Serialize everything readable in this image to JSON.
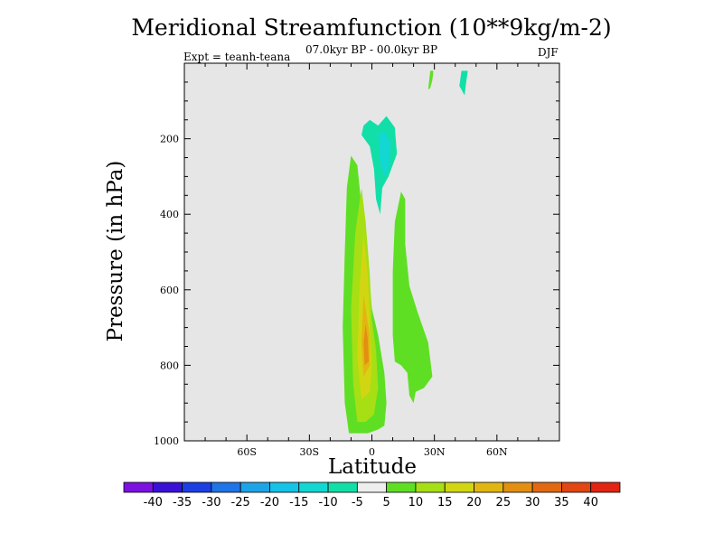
{
  "chart_data": {
    "type": "contour",
    "title": "Meridional Streamfunction (10**9kg/m-2)",
    "subtitle": "07.0kyr BP - 00.0kyr BP",
    "experiment_label": "Expt = teanh-teana",
    "season_label": "DJF",
    "xlabel": "Latitude",
    "ylabel": "Pressure (in hPa)",
    "xlim": [
      -90,
      90
    ],
    "ylim": [
      1000,
      0
    ],
    "x_ticks": [
      {
        "value": -60,
        "label": "60S"
      },
      {
        "value": -30,
        "label": "30S"
      },
      {
        "value": 0,
        "label": "0"
      },
      {
        "value": 30,
        "label": "30N"
      },
      {
        "value": 60,
        "label": "60N"
      }
    ],
    "y_ticks": [
      {
        "value": 200,
        "label": "200"
      },
      {
        "value": 400,
        "label": "400"
      },
      {
        "value": 600,
        "label": "600"
      },
      {
        "value": 800,
        "label": "800"
      },
      {
        "value": 1000,
        "label": "1000"
      }
    ],
    "contour_levels": [
      -40,
      -35,
      -30,
      -25,
      -20,
      -15,
      -10,
      -5,
      5,
      10,
      15,
      20,
      25,
      30,
      35,
      40
    ],
    "colorbar_labels": [
      "-40",
      "-35",
      "-30",
      "-25",
      "-20",
      "-15",
      "-10",
      "-5",
      "5",
      "10",
      "15",
      "20",
      "25",
      "30",
      "35",
      "40"
    ],
    "colorbar_colors": [
      "#7b12e0",
      "#3a12d6",
      "#1c3fe3",
      "#1f74e6",
      "#1da4e6",
      "#14c3e6",
      "#12d7d2",
      "#12dfa8",
      "#eeeeee",
      "#5edf24",
      "#a6df14",
      "#d2d612",
      "#e2b612",
      "#e28f12",
      "#e26812",
      "#e24612",
      "#e22412"
    ],
    "background_color": "#e6e6e6",
    "features": [
      {
        "name": "main positive cell",
        "level": 5,
        "lat": [
          -13,
          7
        ],
        "p": [
          245,
          970
        ],
        "peak_lat": -3,
        "peak_p": 760
      },
      {
        "name": "positive cell core",
        "level": 10,
        "lat": [
          -8,
          3
        ],
        "p": [
          330,
          950
        ]
      },
      {
        "name": "positive cell core",
        "level": 15,
        "lat": [
          -6,
          0
        ],
        "p": [
          450,
          890
        ]
      },
      {
        "name": "positive cell core",
        "level": 20,
        "lat": [
          -5,
          -1
        ],
        "p": [
          610,
          830
        ]
      },
      {
        "name": "positive cell peak",
        "level": 25,
        "lat": [
          -4,
          -1
        ],
        "p": [
          690,
          800
        ]
      },
      {
        "name": "northern positive lobe",
        "level": 5,
        "lat": [
          8,
          29
        ],
        "p": [
          330,
          900
        ]
      },
      {
        "name": "negative cell aloft",
        "level": -5,
        "lat": [
          -5,
          12
        ],
        "p": [
          160,
          400
        ]
      },
      {
        "name": "negative core aloft",
        "level": -10,
        "lat": [
          2,
          10
        ],
        "p": [
          170,
          300
        ]
      },
      {
        "name": "upper positive sliver",
        "level": 5,
        "lat": [
          27,
          30
        ],
        "p": [
          0,
          70
        ]
      },
      {
        "name": "upper negative sliver",
        "level": -5,
        "lat": [
          42,
          46
        ],
        "p": [
          0,
          85
        ]
      }
    ]
  }
}
